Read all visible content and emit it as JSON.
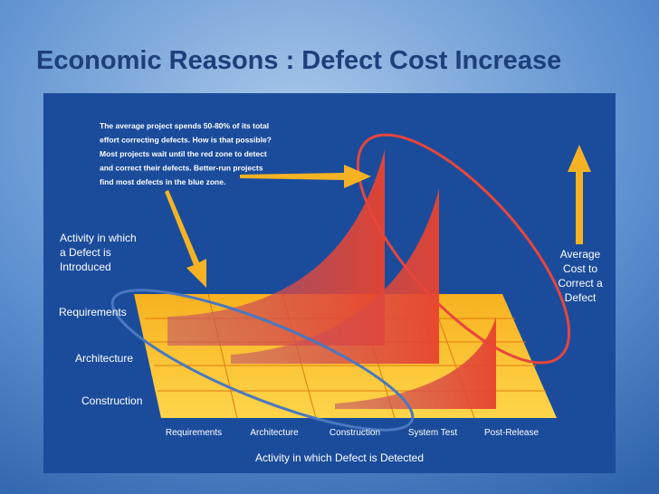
{
  "title": "Economic Reasons : Defect Cost Increase",
  "annotation": [
    "The average project spends 50-80% of its total",
    "effort correcting defects. How is that possible?",
    "Most projects wait until the red zone to detect",
    "and correct their defects. Better-run projects",
    "find most defects in the blue zone."
  ],
  "introduced_axis_title": [
    "Activity in which",
    "a Defect is",
    "Introduced"
  ],
  "rows": [
    "Requirements",
    "Architecture",
    "Construction"
  ],
  "columns": [
    "Requirements",
    "Architecture",
    "Construction",
    "System Test",
    "Post-Release"
  ],
  "detected_axis_title": "Activity in which Defect is Detected",
  "cost_label": [
    "Average",
    "Cost to",
    "Correct a",
    "Defect"
  ]
}
